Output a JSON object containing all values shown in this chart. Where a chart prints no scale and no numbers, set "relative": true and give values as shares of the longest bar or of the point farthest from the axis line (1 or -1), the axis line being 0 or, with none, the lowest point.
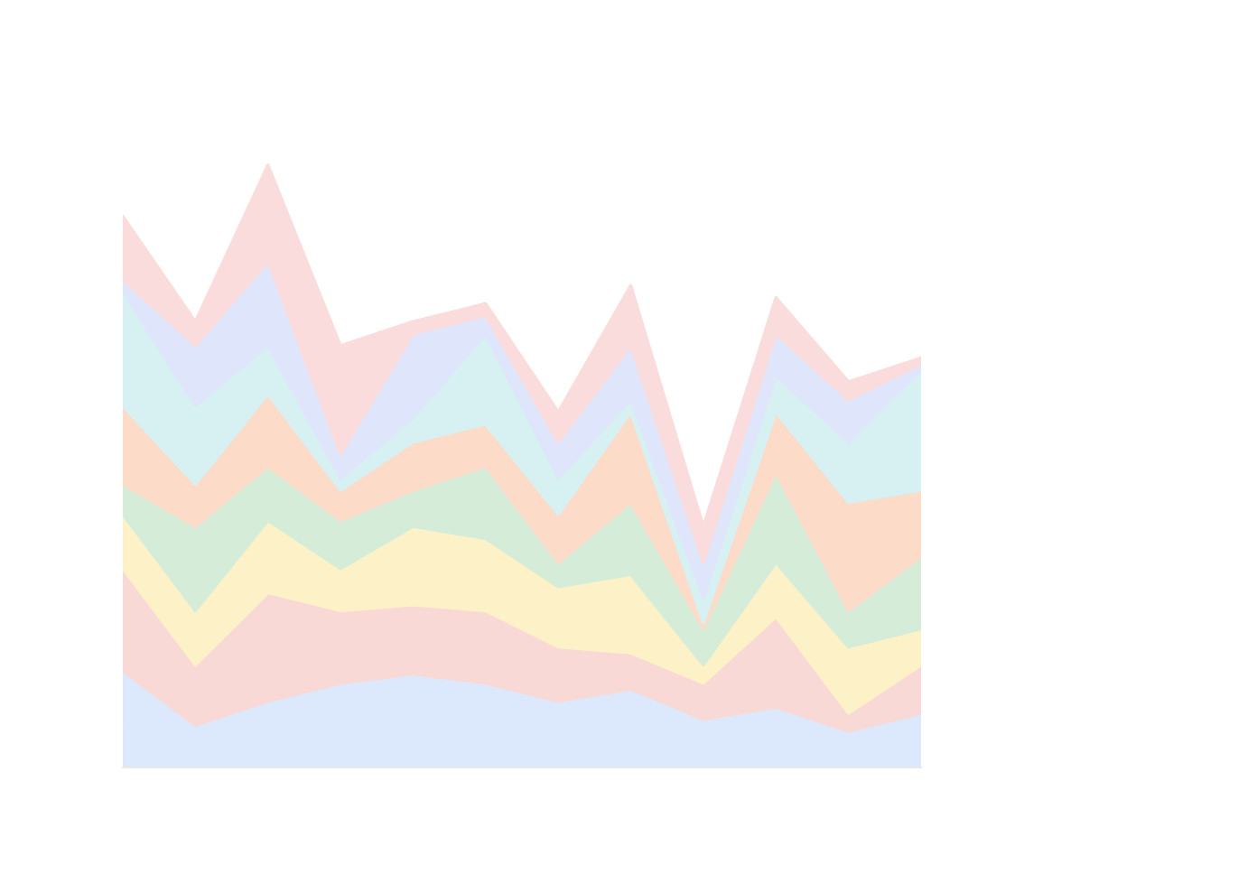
{
  "chart_data": {
    "type": "area",
    "stacked": true,
    "relative": true,
    "categories": [
      null,
      null,
      null,
      null,
      null,
      null,
      null,
      null,
      null,
      null,
      null,
      null
    ],
    "series": [
      {
        "color": "#dce8fb",
        "values": [
          0.16,
          0.07,
          0.11,
          0.14,
          0.155,
          0.14,
          0.11,
          0.13,
          0.08,
          0.1,
          0.06,
          0.09
        ]
      },
      {
        "color": "#f9d9d6",
        "values": [
          0.17,
          0.1,
          0.18,
          0.12,
          0.115,
          0.12,
          0.09,
          0.06,
          0.06,
          0.15,
          0.03,
          0.08
        ]
      },
      {
        "color": "#fdf1c7",
        "values": [
          0.09,
          0.09,
          0.12,
          0.07,
          0.13,
          0.12,
          0.1,
          0.13,
          0.03,
          0.09,
          0.11,
          0.06
        ]
      },
      {
        "color": "#d5ecd8",
        "values": [
          0.05,
          0.14,
          0.09,
          0.08,
          0.06,
          0.12,
          0.04,
          0.12,
          0.06,
          0.15,
          0.06,
          0.12
        ]
      },
      {
        "color": "#fcdcc8",
        "values": [
          0.13,
          0.07,
          0.12,
          0.05,
          0.08,
          0.07,
          0.08,
          0.15,
          0.01,
          0.1,
          0.18,
          0.11
        ]
      },
      {
        "color": "#d7f0f2",
        "values": [
          0.19,
          0.13,
          0.08,
          0.02,
          0.04,
          0.15,
          0.06,
          0.02,
          0.04,
          0.06,
          0.1,
          0.2
        ]
      },
      {
        "color": "#dfe6fb",
        "values": [
          0.02,
          0.1,
          0.14,
          0.04,
          0.14,
          0.03,
          0.06,
          0.09,
          0.06,
          0.07,
          0.07,
          0.01
        ]
      },
      {
        "color": "#fbdcdc",
        "values": [
          0.105,
          0.04,
          0.16,
          0.18,
          0.02,
          0.02,
          0.05,
          0.1,
          0.06,
          0.06,
          0.03,
          0.01
        ]
      }
    ]
  }
}
